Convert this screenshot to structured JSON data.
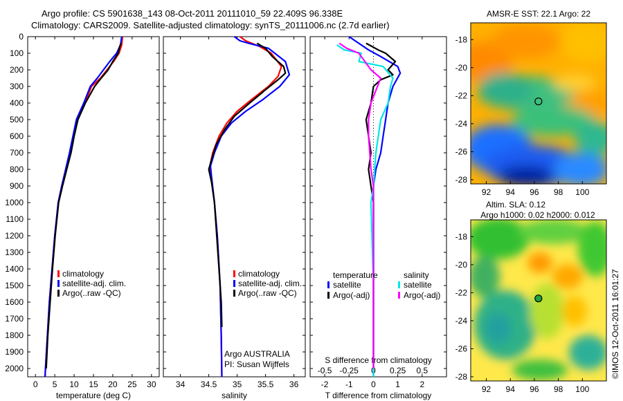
{
  "titles": {
    "line1": "Argo profile: CS 5901638_143 08-Oct-2011 20111010_59 22.409S 96.338E",
    "line2": "Climatology: CARS2009. Satellite-adjusted climatology: synTS_20111006.nc (2.7d earlier)"
  },
  "depth_ticks": [
    "0",
    "100",
    "200",
    "300",
    "400",
    "500",
    "600",
    "700",
    "800",
    "900",
    "1000",
    "1100",
    "1200",
    "1300",
    "1400",
    "1500",
    "1600",
    "1700",
    "1800",
    "1900",
    "2000"
  ],
  "colors": {
    "climatology": "#ff0000",
    "satellite": "#0000ff",
    "argo": "#000000",
    "satellite_s": "#00e5e5",
    "argo_s": "#ff00ff"
  },
  "chart_data": [
    {
      "type": "line",
      "xlabel": "temperature (deg C)",
      "xlim": [
        -2,
        32
      ],
      "xticks": [
        "0",
        "5",
        "10",
        "15",
        "20",
        "25",
        "30"
      ],
      "ylim": [
        0,
        2050
      ],
      "legend": [
        "climatology",
        "satellite-adj. clim.",
        "Argo(..raw -QC)"
      ],
      "series": [
        {
          "name": "climatology",
          "color": "#ff0000",
          "points": [
            [
              22.5,
              0
            ],
            [
              22.3,
              50
            ],
            [
              21.6,
              100
            ],
            [
              20.2,
              150
            ],
            [
              18.5,
              200
            ],
            [
              16.8,
              250
            ],
            [
              14.5,
              300
            ],
            [
              12.8,
              400
            ],
            [
              10.8,
              500
            ],
            [
              9.8,
              600
            ],
            [
              8.9,
              700
            ],
            [
              7.9,
              800
            ],
            [
              6.8,
              900
            ],
            [
              5.9,
              1000
            ],
            [
              5.0,
              1200
            ],
            [
              4.3,
              1400
            ],
            [
              3.6,
              1600
            ],
            [
              3.1,
              1800
            ],
            [
              2.6,
              2000
            ],
            [
              2.5,
              2050
            ]
          ]
        },
        {
          "name": "satellite-adj. clim.",
          "color": "#0000ff",
          "points": [
            [
              22.3,
              0
            ],
            [
              22.0,
              50
            ],
            [
              21.0,
              100
            ],
            [
              19.2,
              150
            ],
            [
              17.6,
              200
            ],
            [
              16.0,
              250
            ],
            [
              14.2,
              300
            ],
            [
              12.5,
              400
            ],
            [
              10.6,
              500
            ],
            [
              9.7,
              600
            ],
            [
              8.8,
              700
            ],
            [
              7.8,
              800
            ],
            [
              6.8,
              900
            ],
            [
              5.9,
              1000
            ],
            [
              5.0,
              1200
            ],
            [
              4.3,
              1400
            ],
            [
              3.6,
              1600
            ],
            [
              3.1,
              1800
            ],
            [
              2.6,
              2000
            ],
            [
              2.5,
              2050
            ]
          ]
        },
        {
          "name": "Argo(..raw -QC)",
          "color": "#000000",
          "points": [
            [
              22.1,
              40
            ],
            [
              21.8,
              60
            ],
            [
              21.4,
              100
            ],
            [
              20.0,
              150
            ],
            [
              18.8,
              200
            ],
            [
              17.0,
              250
            ],
            [
              15.3,
              300
            ],
            [
              12.9,
              400
            ],
            [
              11.0,
              500
            ],
            [
              10.0,
              600
            ],
            [
              9.2,
              700
            ],
            [
              8.1,
              800
            ],
            [
              7.0,
              900
            ],
            [
              6.0,
              1000
            ],
            [
              5.1,
              1200
            ],
            [
              4.4,
              1400
            ],
            [
              3.8,
              1600
            ],
            [
              3.2,
              1800
            ],
            [
              2.8,
              2000
            ]
          ]
        }
      ]
    },
    {
      "type": "line",
      "xlabel": "salinity",
      "xlim": [
        33.7,
        36.2
      ],
      "xticks": [
        "34",
        "34.5",
        "35",
        "35.5",
        "36"
      ],
      "ylim": [
        0,
        2050
      ],
      "legend": [
        "climatology",
        "satellite-adj. clim.",
        "Argo(..raw -QC)"
      ],
      "series": [
        {
          "name": "climatology",
          "color": "#ff0000",
          "points": [
            [
              35.05,
              0
            ],
            [
              35.15,
              25
            ],
            [
              35.4,
              60
            ],
            [
              35.6,
              100
            ],
            [
              35.78,
              180
            ],
            [
              35.72,
              240
            ],
            [
              35.55,
              300
            ],
            [
              35.25,
              380
            ],
            [
              35.0,
              450
            ],
            [
              34.82,
              520
            ],
            [
              34.68,
              600
            ],
            [
              34.57,
              700
            ],
            [
              34.52,
              780
            ],
            [
              34.55,
              850
            ],
            [
              34.6,
              1000
            ],
            [
              34.65,
              1200
            ],
            [
              34.7,
              1500
            ],
            [
              34.72,
              1800
            ],
            [
              34.73,
              2050
            ]
          ]
        },
        {
          "name": "satellite-adj. clim.",
          "color": "#0000ff",
          "points": [
            [
              34.95,
              0
            ],
            [
              35.05,
              25
            ],
            [
              35.2,
              40
            ],
            [
              35.55,
              70
            ],
            [
              35.85,
              150
            ],
            [
              35.92,
              230
            ],
            [
              35.75,
              300
            ],
            [
              35.45,
              380
            ],
            [
              35.15,
              450
            ],
            [
              34.9,
              520
            ],
            [
              34.72,
              600
            ],
            [
              34.6,
              700
            ],
            [
              34.53,
              780
            ],
            [
              34.55,
              850
            ],
            [
              34.6,
              1000
            ],
            [
              34.65,
              1200
            ],
            [
              34.7,
              1500
            ],
            [
              34.72,
              1800
            ],
            [
              34.73,
              2050
            ]
          ]
        },
        {
          "name": "Argo(..raw -QC)",
          "color": "#000000",
          "points": [
            [
              35.35,
              40
            ],
            [
              35.5,
              70
            ],
            [
              35.62,
              120
            ],
            [
              35.82,
              180
            ],
            [
              35.85,
              220
            ],
            [
              35.72,
              260
            ],
            [
              35.5,
              320
            ],
            [
              35.22,
              400
            ],
            [
              34.95,
              480
            ],
            [
              34.78,
              560
            ],
            [
              34.63,
              650
            ],
            [
              34.55,
              740
            ],
            [
              34.5,
              800
            ],
            [
              34.55,
              880
            ],
            [
              34.6,
              1000
            ],
            [
              34.64,
              1200
            ],
            [
              34.68,
              1400
            ],
            [
              34.72,
              1600
            ],
            [
              34.73,
              1750
            ]
          ]
        }
      ]
    },
    {
      "type": "line",
      "xlabel": "T difference from climatology",
      "top_label": "S difference from climatology",
      "xlim": [
        -2.6,
        3.0
      ],
      "xticks": [
        "-2",
        "-1",
        "0",
        "1",
        "2"
      ],
      "top_ticks": [
        "-0.5",
        "-0.25",
        "0",
        "0.25",
        "0.5"
      ],
      "ylim": [
        0,
        2050
      ],
      "legend_titles": [
        "temperature",
        "salinity"
      ],
      "legend": [
        "satellite",
        "Argo(-adj)",
        "satellite",
        "Argo(-adj)"
      ],
      "series": [
        {
          "name": "satellite",
          "color": "#0000ff",
          "points": [
            [
              -1.0,
              0
            ],
            [
              -0.6,
              40
            ],
            [
              -0.2,
              80
            ],
            [
              0.3,
              120
            ],
            [
              1.0,
              180
            ],
            [
              1.1,
              220
            ],
            [
              0.8,
              300
            ],
            [
              0.6,
              400
            ],
            [
              0.5,
              500
            ],
            [
              0.4,
              600
            ],
            [
              0.3,
              700
            ],
            [
              0.1,
              800
            ],
            [
              0.0,
              900
            ],
            [
              0.0,
              1200
            ],
            [
              0.0,
              1600
            ],
            [
              0.0,
              2050
            ]
          ]
        },
        {
          "name": "Argo(-adj)",
          "color": "#000000",
          "points": [
            [
              -0.3,
              40
            ],
            [
              0.2,
              80
            ],
            [
              0.5,
              100
            ],
            [
              0.9,
              150
            ],
            [
              0.6,
              200
            ],
            [
              0.8,
              230
            ],
            [
              0.3,
              260
            ],
            [
              0.0,
              300
            ],
            [
              -0.1,
              400
            ],
            [
              -0.3,
              500
            ],
            [
              -0.2,
              600
            ],
            [
              -0.1,
              700
            ],
            [
              -0.2,
              800
            ],
            [
              -0.1,
              900
            ],
            [
              0.0,
              1000
            ],
            [
              0.0,
              1300
            ],
            [
              0.0,
              1600
            ],
            [
              0.0,
              2000
            ]
          ]
        },
        {
          "name": "satellite",
          "color": "#00e5e5",
          "points": [
            [
              -1.5,
              50
            ],
            [
              -1.2,
              80
            ],
            [
              -0.5,
              100
            ],
            [
              -0.6,
              150
            ],
            [
              0.4,
              180
            ],
            [
              0.8,
              250
            ],
            [
              0.7,
              300
            ],
            [
              0.6,
              400
            ],
            [
              0.3,
              500
            ],
            [
              0.1,
              700
            ],
            [
              0.0,
              900
            ],
            [
              -0.1,
              1000
            ],
            [
              0.0,
              1500
            ],
            [
              0.0,
              2050
            ]
          ]
        },
        {
          "name": "Argo(-adj)",
          "color": "#ff00ff",
          "points": [
            [
              -1.4,
              40
            ],
            [
              -1.1,
              70
            ],
            [
              -0.6,
              100
            ],
            [
              -0.1,
              200
            ],
            [
              0.3,
              250
            ],
            [
              -0.1,
              400
            ],
            [
              -0.2,
              500
            ],
            [
              -0.2,
              600
            ],
            [
              -0.15,
              700
            ],
            [
              -0.1,
              800
            ],
            [
              0.0,
              900
            ],
            [
              0.0,
              1200
            ],
            [
              0.0,
              1600
            ],
            [
              0.0,
              2000
            ]
          ]
        }
      ]
    },
    {
      "type": "heatmap",
      "title": "AMSR-E SST: 22.1  Argo: 22",
      "xticks": [
        "92",
        "94",
        "96",
        "98",
        "100"
      ],
      "yticks": [
        "-18",
        "-20",
        "-22",
        "-24",
        "-26",
        "-28"
      ],
      "xlim": [
        90.7,
        102
      ],
      "ylim": [
        -28.3,
        -16.8
      ],
      "marker": [
        96.34,
        -22.41
      ]
    },
    {
      "type": "heatmap",
      "title_line1": "Altim. SLA: 0.12",
      "title_line2": "Argo h1000: 0.02 h2000: 0.012",
      "xticks": [
        "92",
        "94",
        "96",
        "98",
        "100"
      ],
      "yticks": [
        "-18",
        "-20",
        "-22",
        "-24",
        "-26",
        "-28"
      ],
      "xlim": [
        90.7,
        102
      ],
      "ylim": [
        -28.3,
        -16.8
      ],
      "marker": [
        96.34,
        -22.41
      ]
    }
  ],
  "plot_labels": {
    "argo_group": "Argo AUSTRALIA",
    "pi": "PI: Susan Wijffels",
    "footer": "©IMOS 12-Oct-2011 16:01:27"
  }
}
